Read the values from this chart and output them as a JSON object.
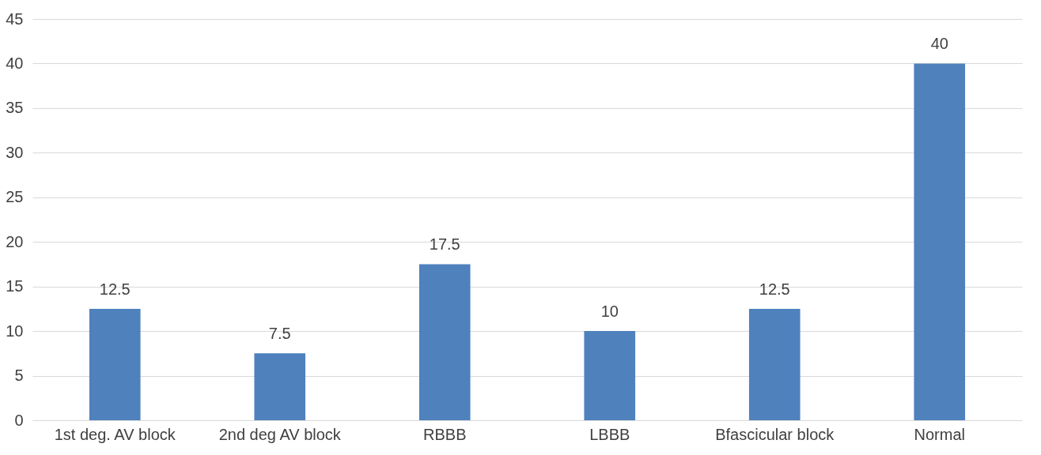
{
  "chart_data": {
    "type": "bar",
    "categories": [
      "1st deg. AV block",
      "2nd deg AV block",
      "RBBB",
      "LBBB",
      "Bfascicular block",
      "Normal"
    ],
    "values": [
      12.5,
      7.5,
      17.5,
      10,
      12.5,
      40
    ],
    "color": "#4f81bd",
    "ylim": [
      0,
      45
    ],
    "yticks": [
      0,
      5,
      10,
      15,
      20,
      25,
      30,
      35,
      40,
      45
    ],
    "grid": "y",
    "data_labels": true
  }
}
